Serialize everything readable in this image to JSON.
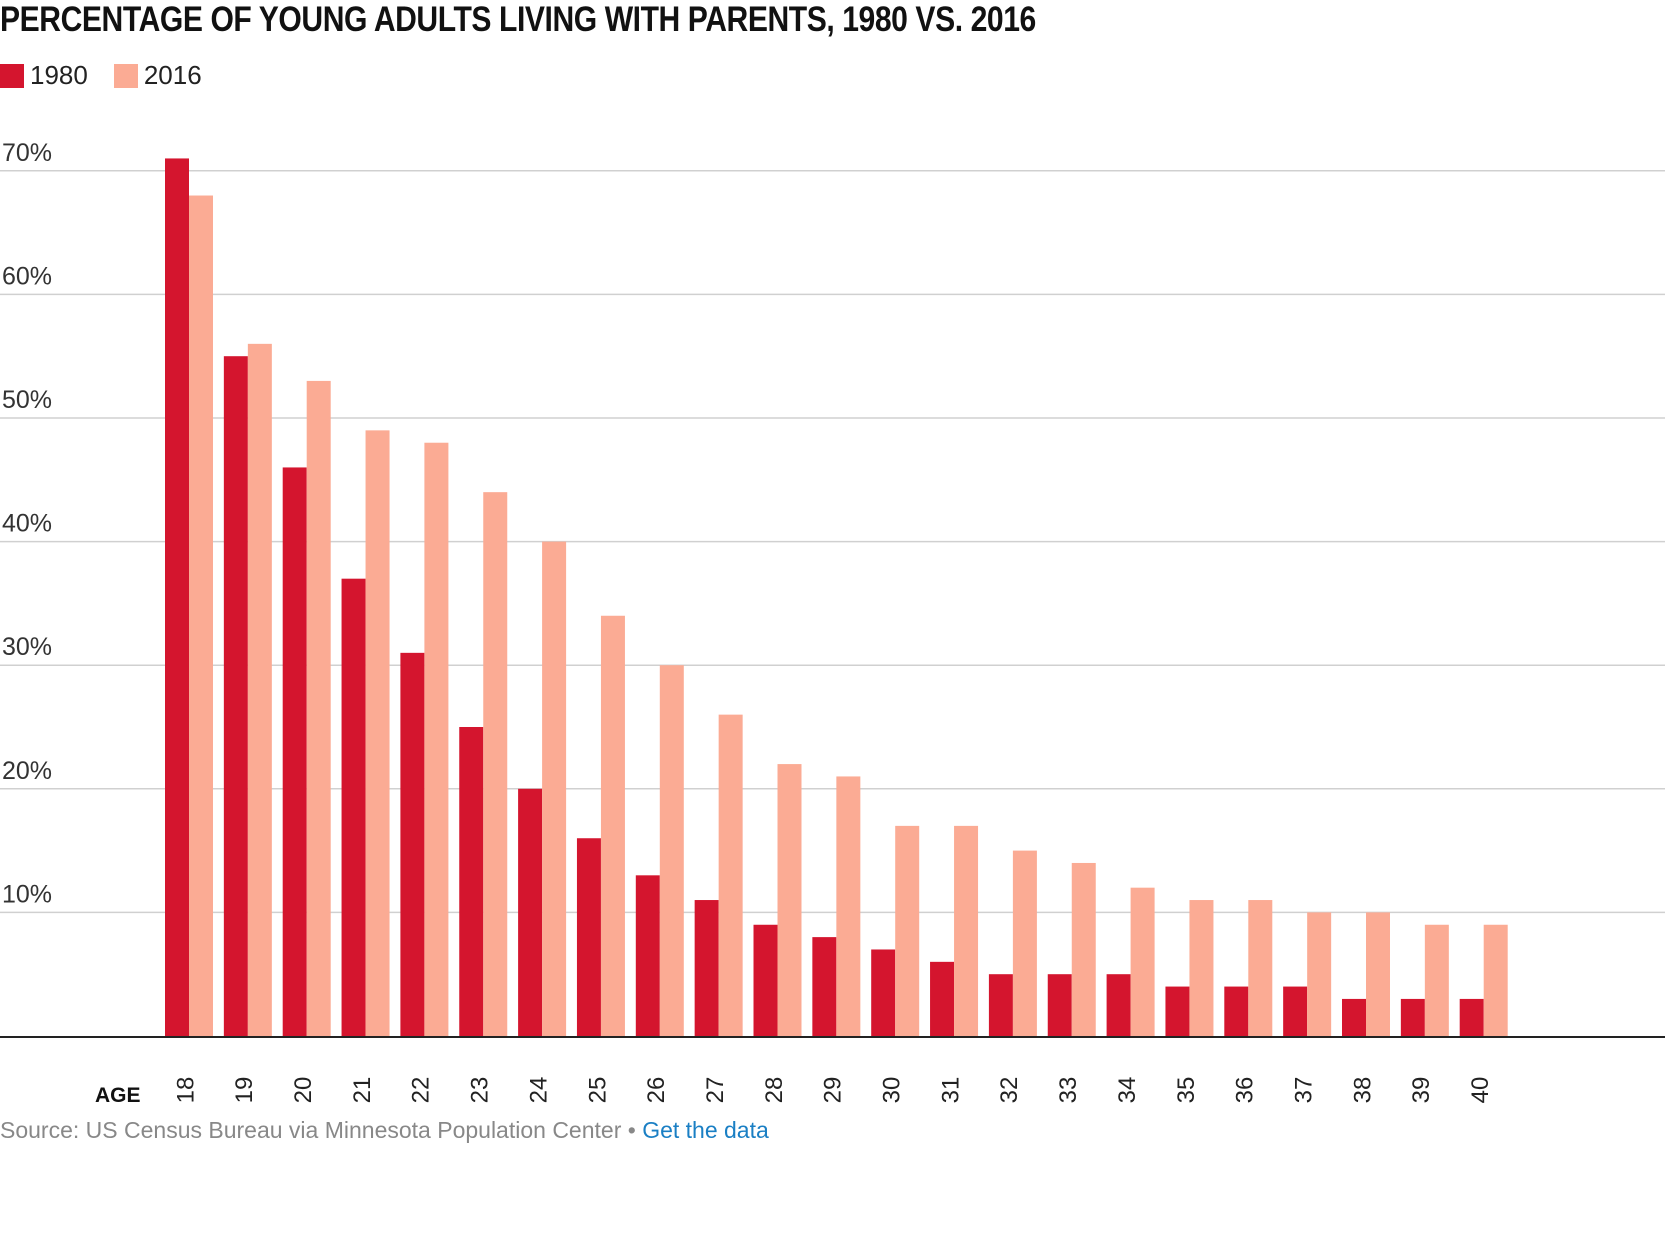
{
  "chart_data": {
    "type": "bar",
    "title": "PERCENTAGE OF YOUNG ADULTS LIVING WITH PARENTS, 1980 VS. 2016",
    "xlabel": "AGE",
    "ylabel": "",
    "ylim": [
      0,
      70
    ],
    "yticks": [
      "10%",
      "20%",
      "30%",
      "40%",
      "50%",
      "60%",
      "70%"
    ],
    "ytick_values": [
      10,
      20,
      30,
      40,
      50,
      60,
      70
    ],
    "grid": true,
    "legend_position": "top-left",
    "categories": [
      "18",
      "19",
      "20",
      "21",
      "22",
      "23",
      "24",
      "25",
      "26",
      "27",
      "28",
      "29",
      "30",
      "31",
      "32",
      "33",
      "34",
      "35",
      "36",
      "37",
      "38",
      "39",
      "40"
    ],
    "series": [
      {
        "name": "1980",
        "color": "#d4152e",
        "values": [
          71,
          55,
          46,
          37,
          31,
          25,
          20,
          16,
          13,
          11,
          9,
          8,
          7,
          6,
          5,
          5,
          5,
          4,
          4,
          4,
          3,
          3,
          3
        ]
      },
      {
        "name": "2016",
        "color": "#fbab94",
        "values": [
          68,
          56,
          53,
          49,
          48,
          44,
          40,
          34,
          30,
          26,
          22,
          21,
          17,
          17,
          15,
          14,
          12,
          11,
          11,
          10,
          10,
          9,
          9
        ]
      }
    ]
  },
  "source": {
    "text": "Source: US Census Bureau via Minnesota Population Center • ",
    "link": "Get the data"
  }
}
